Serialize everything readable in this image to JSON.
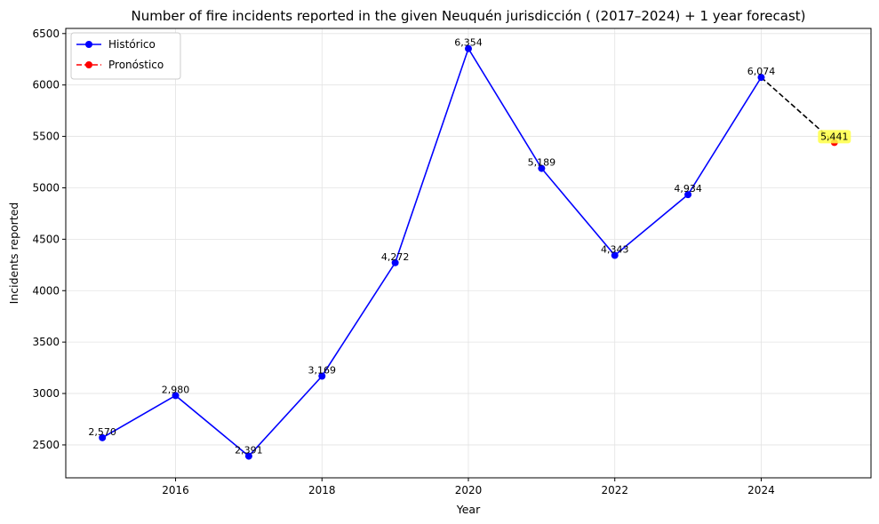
{
  "chart_data": {
    "type": "line",
    "title": "Number of fire incidents reported in the given Neuquén jurisdicción  ( (2017–2024)  + 1 year forecast)",
    "xlabel": "Year",
    "ylabel": "Incidents reported",
    "xlim": [
      2014.5,
      2025.5
    ],
    "ylim": [
      2180,
      6550
    ],
    "xticks": [
      2016,
      2018,
      2020,
      2022,
      2024
    ],
    "yticks": [
      2500,
      3000,
      3500,
      4000,
      4500,
      5000,
      5500,
      6000,
      6500
    ],
    "grid": true,
    "legend_position": "top-left",
    "series": [
      {
        "name": "Histórico",
        "color": "#0000ff",
        "line_style": "solid",
        "marker": "circle",
        "x": [
          2015,
          2016,
          2017,
          2018,
          2019,
          2020,
          2021,
          2022,
          2023,
          2024
        ],
        "y": [
          2570,
          2980,
          2391,
          3169,
          4272,
          6354,
          5189,
          4343,
          4934,
          6074
        ],
        "labels": [
          "2,570",
          "2,980",
          "2,391",
          "3,169",
          "4,272",
          "6,354",
          "5,189",
          "4,343",
          "4,934",
          "6,074"
        ]
      },
      {
        "name": "Pronóstico",
        "color": "#ff0000",
        "line_style": "dashed",
        "marker": "circle",
        "x": [
          2025
        ],
        "y": [
          5441
        ],
        "labels": [
          "5,441"
        ],
        "label_highlight": "#ffff44"
      }
    ],
    "forecast_connector": {
      "color": "#000000",
      "line_style": "dashed",
      "from": [
        2024,
        6074
      ],
      "to": [
        2025,
        5441
      ]
    }
  }
}
